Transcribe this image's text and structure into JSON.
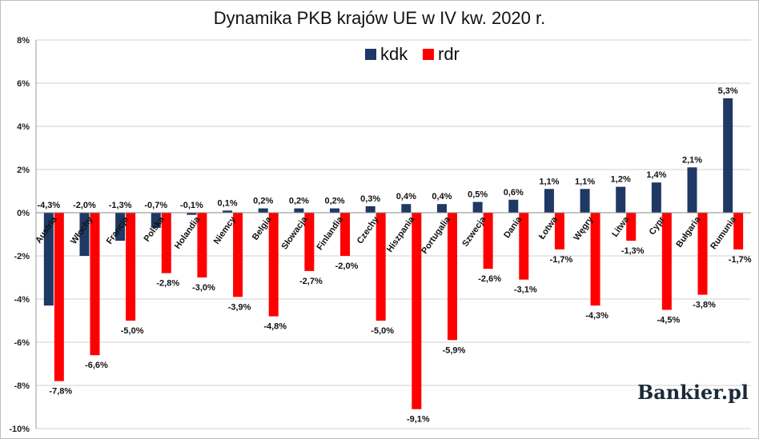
{
  "chart_data": {
    "type": "bar",
    "title": "Dynamika PKB krajów UE w IV kw. 2020 r.",
    "xlabel": "",
    "ylabel": "",
    "ylim": [
      -10,
      8
    ],
    "yticks": [
      "8%",
      "6%",
      "4%",
      "2%",
      "0%",
      "-2%",
      "-4%",
      "-6%",
      "-8%",
      "-10%"
    ],
    "ytick_values": [
      8,
      6,
      4,
      2,
      0,
      -2,
      -4,
      -6,
      -8,
      -10
    ],
    "grid": true,
    "legend_position": "top-center",
    "categories": [
      "Austria",
      "Włochy",
      "Francja",
      "Polska",
      "Holandia",
      "Niemcy",
      "Belgia",
      "Słowacja",
      "Finlandia",
      "Czechy",
      "Hiszpania",
      "Portugalia",
      "Szwecja",
      "Dania",
      "Łotwa",
      "Węgry",
      "Litwa",
      "Cypr",
      "Bułgaria",
      "Rumunia"
    ],
    "series": [
      {
        "name": "kdk",
        "color": "#1f3864",
        "values": [
          -4.3,
          -2.0,
          -1.3,
          -0.7,
          -0.1,
          0.1,
          0.2,
          0.2,
          0.2,
          0.3,
          0.4,
          0.4,
          0.5,
          0.6,
          1.1,
          1.1,
          1.2,
          1.4,
          2.1,
          5.3
        ],
        "labels": [
          "-4,3%",
          "-2,0%",
          "-1,3%",
          "-0,7%",
          "-0,1%",
          "0,1%",
          "0,2%",
          "0,2%",
          "0,2%",
          "0,3%",
          "0,4%",
          "0,4%",
          "0,5%",
          "0,6%",
          "1,1%",
          "1,1%",
          "1,2%",
          "1,4%",
          "2,1%",
          "5,3%"
        ]
      },
      {
        "name": "rdr",
        "color": "#ff0000",
        "values": [
          -7.8,
          -6.6,
          -5.0,
          -2.8,
          -3.0,
          -3.9,
          -4.8,
          -2.7,
          -2.0,
          -5.0,
          -9.1,
          -5.9,
          -2.6,
          -3.1,
          -1.7,
          -4.3,
          -1.3,
          -4.5,
          -3.8,
          -1.7
        ],
        "labels": [
          "-7,8%",
          "-6,6%",
          "-5,0%",
          "-2,8%",
          "-3,0%",
          "-3,9%",
          "-4,8%",
          "-2,7%",
          "-2,0%",
          "-5,0%",
          "-9,1%",
          "-5,9%",
          "-2,6%",
          "-3,1%",
          "-1,7%",
          "-4,3%",
          "-1,3%",
          "-4,5%",
          "-3,8%",
          "-1,7%"
        ]
      }
    ]
  },
  "brand": "Bankier.pl"
}
